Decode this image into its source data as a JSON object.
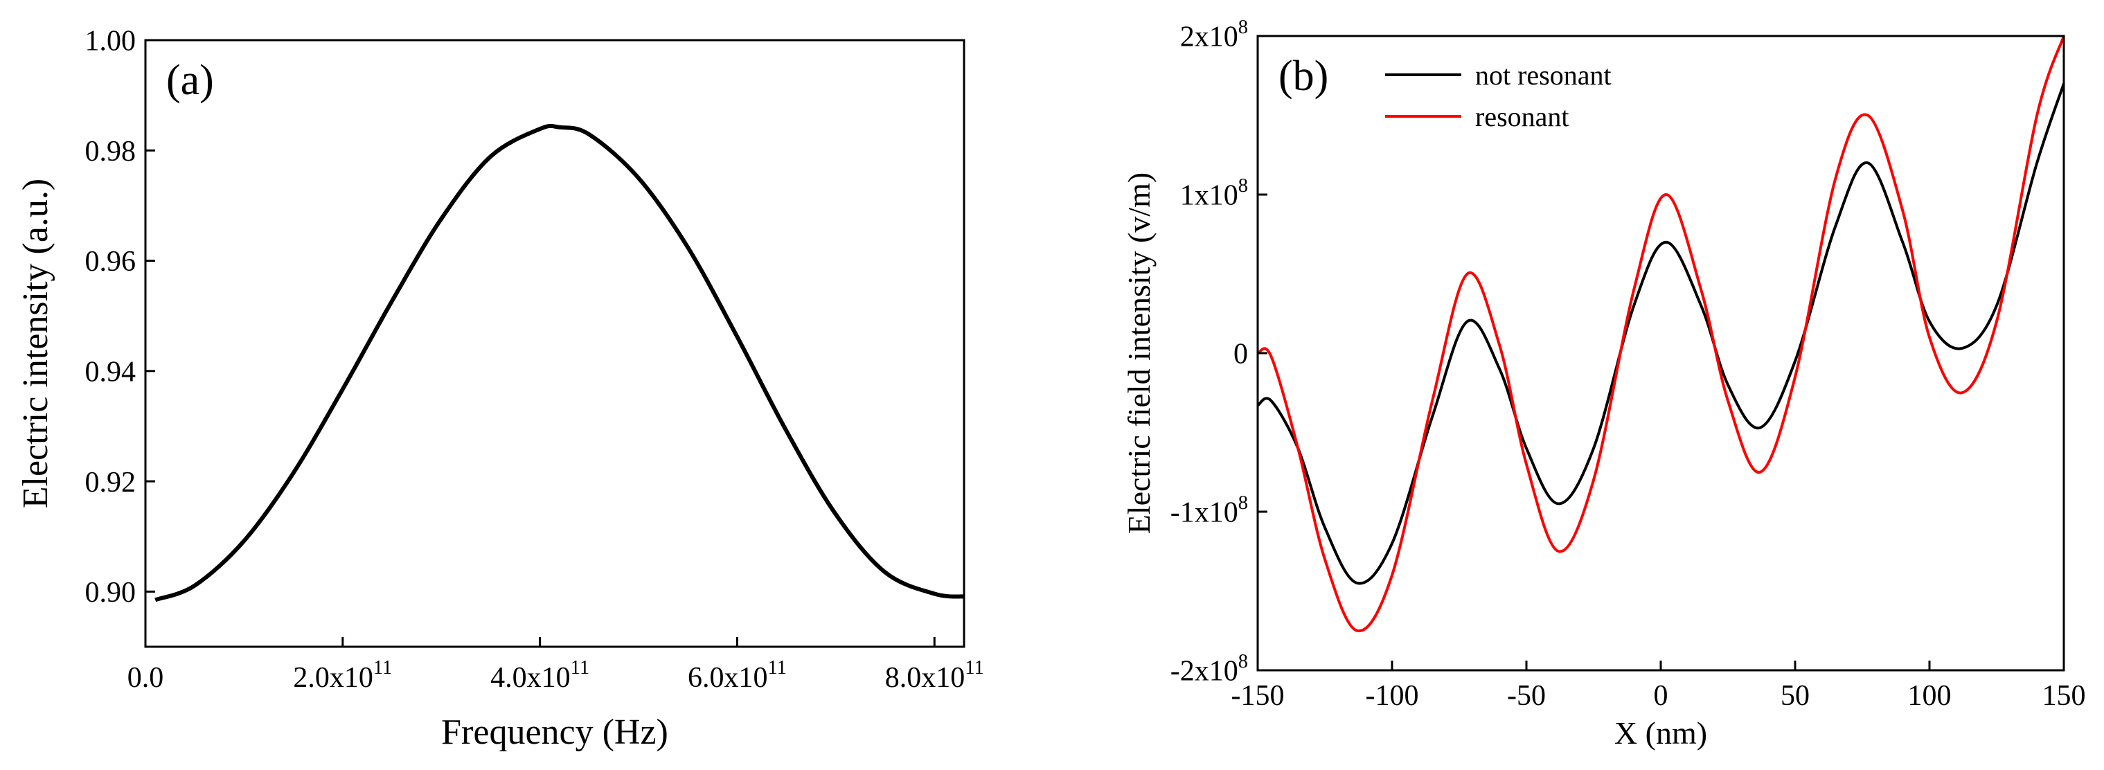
{
  "colors": {
    "black": "#000000",
    "red": "#ff0000"
  },
  "chart_data": [
    {
      "type": "line",
      "panel_label": "(a)",
      "xlabel": "Frequency (Hz)",
      "ylabel": "Electric intensity (a.u.)",
      "xlim": [
        0,
        830000000000.0
      ],
      "ylim": [
        0.89,
        1.0
      ],
      "xticks": [
        {
          "value": 0,
          "mant": "0.0",
          "exp": ""
        },
        {
          "value": 200000000000.0,
          "mant": "2.0x10",
          "exp": "11"
        },
        {
          "value": 400000000000.0,
          "mant": "4.0x10",
          "exp": "11"
        },
        {
          "value": 600000000000.0,
          "mant": "6.0x10",
          "exp": "11"
        },
        {
          "value": 800000000000.0,
          "mant": "8.0x10",
          "exp": "11"
        }
      ],
      "yticks": [
        {
          "value": 0.9,
          "label": "0.90"
        },
        {
          "value": 0.92,
          "label": "0.92"
        },
        {
          "value": 0.94,
          "label": "0.94"
        },
        {
          "value": 0.96,
          "label": "0.96"
        },
        {
          "value": 0.98,
          "label": "0.98"
        },
        {
          "value": 1.0,
          "label": "1.00"
        }
      ],
      "series": [
        {
          "name": "Electric intensity",
          "color": "#000000",
          "x": [
            10000000000.0,
            50000000000.0,
            100000000000.0,
            150000000000.0,
            200000000000.0,
            250000000000.0,
            300000000000.0,
            350000000000.0,
            400000000000.0,
            420000000000.0,
            450000000000.0,
            500000000000.0,
            550000000000.0,
            600000000000.0,
            650000000000.0,
            700000000000.0,
            750000000000.0,
            800000000000.0,
            830000000000.0
          ],
          "y": [
            0.8985,
            0.9011,
            0.9092,
            0.9215,
            0.9367,
            0.9527,
            0.9676,
            0.9789,
            0.9839,
            0.9842,
            0.9829,
            0.975,
            0.9624,
            0.9462,
            0.9291,
            0.914,
            0.9035,
            0.8996,
            0.8991
          ]
        }
      ]
    },
    {
      "type": "line",
      "panel_label": "(b)",
      "xlabel": "X (nm)",
      "ylabel": "Electric field intensity (v/m)",
      "xlim": [
        -150,
        150
      ],
      "ylim": [
        -200000000.0,
        200000000.0
      ],
      "xticks": [
        {
          "value": -150,
          "label": "-150"
        },
        {
          "value": -100,
          "label": "-100"
        },
        {
          "value": -50,
          "label": "-50"
        },
        {
          "value": 0,
          "label": "0"
        },
        {
          "value": 50,
          "label": "50"
        },
        {
          "value": 100,
          "label": "100"
        },
        {
          "value": 150,
          "label": "150"
        }
      ],
      "yticks": [
        {
          "value": -200000000.0,
          "mant": "-2x10",
          "exp": "8"
        },
        {
          "value": -100000000.0,
          "mant": "-1x10",
          "exp": "8"
        },
        {
          "value": 0,
          "mant": "0",
          "exp": ""
        },
        {
          "value": 100000000.0,
          "mant": "1x10",
          "exp": "8"
        },
        {
          "value": 200000000.0,
          "mant": "2x10",
          "exp": "8"
        }
      ],
      "legend_position": "top-left",
      "series": [
        {
          "name": "not resonant",
          "color": "#000000",
          "x": [
            -150,
            -145,
            -135,
            -125,
            -113,
            -100,
            -85,
            -72,
            -60,
            -50,
            -38,
            -25,
            -10,
            2,
            15,
            25,
            37,
            50,
            65,
            77,
            90,
            100,
            112,
            125,
            140,
            150
          ],
          "y": [
            -33000000.0,
            -30000000.0,
            -60000000.0,
            -110000000.0,
            -145000000.0,
            -120000000.0,
            -40000000.0,
            20000000.0,
            -10000000.0,
            -60000000.0,
            -95000000.0,
            -60000000.0,
            30000000.0,
            70000000.0,
            30000000.0,
            -20000000.0,
            -47000000.0,
            -5000000.0,
            80000000.0,
            120000000.0,
            70000000.0,
            20000000.0,
            3000000.0,
            30000000.0,
            120000000.0,
            170000000.0
          ]
        },
        {
          "name": "resonant",
          "color": "#ff0000",
          "x": [
            -150,
            -145,
            -135,
            -125,
            -113,
            -100,
            -85,
            -72,
            -60,
            -50,
            -38,
            -25,
            -10,
            2,
            15,
            25,
            37,
            50,
            65,
            77,
            90,
            100,
            112,
            125,
            140,
            150
          ],
          "y": [
            0,
            -2000000.0,
            -60000000.0,
            -130000000.0,
            -175000000.0,
            -140000000.0,
            -30000000.0,
            50000000.0,
            5000000.0,
            -70000000.0,
            -125000000.0,
            -80000000.0,
            40000000.0,
            100000000.0,
            40000000.0,
            -30000000.0,
            -75000000.0,
            -15000000.0,
            110000000.0,
            150000000.0,
            90000000.0,
            10000000.0,
            -25000000.0,
            20000000.0,
            150000000.0,
            200000000.0
          ]
        }
      ]
    }
  ]
}
